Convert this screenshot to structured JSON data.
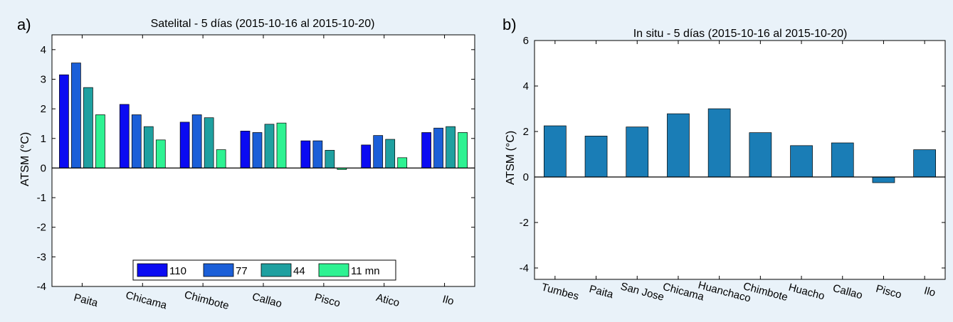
{
  "chart_data": [
    {
      "panel_label": "a)",
      "type": "bar",
      "title": "Satelital - 5 días (2015-10-16  al  2015-10-20)",
      "xlabel": "",
      "ylabel": "ATSM  (°C)",
      "ylim": [
        -4,
        4.5
      ],
      "yticks": [
        -4,
        -3,
        -2,
        -1,
        0,
        1,
        2,
        3,
        4
      ],
      "ytick_labels": [
        "-4",
        "-3",
        "-2",
        "-1",
        "0",
        "1",
        "2",
        "3",
        "4"
      ],
      "grid": false,
      "legend_position": "bottom-center",
      "categories": [
        "Paita",
        "Chicama",
        "Chimbote",
        "Callao",
        "Pisco",
        "Atico",
        "Ilo"
      ],
      "series": [
        {
          "name": "110",
          "color": "#0b0bf2",
          "values": [
            3.15,
            2.15,
            1.55,
            1.25,
            0.92,
            0.78,
            1.2
          ]
        },
        {
          "name": "77",
          "color": "#1b5fd8",
          "values": [
            3.55,
            1.8,
            1.8,
            1.2,
            0.92,
            1.1,
            1.35
          ]
        },
        {
          "name": "44",
          "color": "#1fa0a0",
          "values": [
            2.72,
            1.4,
            1.7,
            1.48,
            0.6,
            0.97,
            1.4
          ]
        },
        {
          "name": "11 mn",
          "color": "#2ef292",
          "values": [
            1.8,
            0.95,
            0.62,
            1.52,
            -0.05,
            0.35,
            1.2
          ]
        }
      ]
    },
    {
      "panel_label": "b)",
      "type": "bar",
      "title": "In situ - 5 días (2015-10-16  al  2015-10-20)",
      "xlabel": "",
      "ylabel": "ATSM  (°C)",
      "ylim": [
        -4.5,
        6
      ],
      "yticks": [
        -4,
        -2,
        0,
        2,
        4,
        6
      ],
      "ytick_labels": [
        "-4",
        "-2",
        "0",
        "2",
        "4",
        "6"
      ],
      "grid": false,
      "categories": [
        "Tumbes",
        "Paita",
        "San Jose",
        "Chicama",
        "Huanchaco",
        "Chimbote",
        "Huacho",
        "Callao",
        "Pisco",
        "Ilo"
      ],
      "series": [
        {
          "color": "#1a7db6",
          "values": [
            2.25,
            1.8,
            2.2,
            2.78,
            3.0,
            1.95,
            1.38,
            1.5,
            -0.25,
            1.2
          ]
        }
      ]
    }
  ]
}
